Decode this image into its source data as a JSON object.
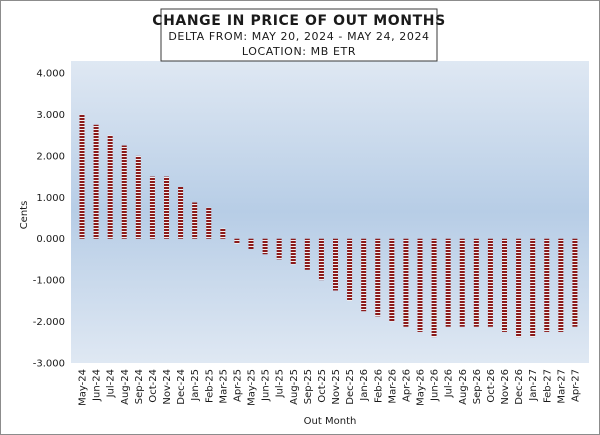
{
  "chart_data": {
    "type": "bar",
    "title": "CHANGE IN PRICE OF OUT MONTHS",
    "subtitle_lines": [
      "DELTA FROM: MAY 20, 2024 - MAY 24, 2024",
      "LOCATION: MB ETR"
    ],
    "xlabel": "Out Month",
    "ylabel": "Cents",
    "ylim": [
      -3,
      4
    ],
    "yticks": [
      "4.000",
      "3.000",
      "2.000",
      "1.000",
      "0.000",
      "-1.000",
      "-2.000",
      "-3.000"
    ],
    "categories": [
      "May-24",
      "Jun-24",
      "Jul-24",
      "Aug-24",
      "Sep-24",
      "Oct-24",
      "Nov-24",
      "Dec-24",
      "Jan-25",
      "Feb-25",
      "Mar-25",
      "Apr-25",
      "May-25",
      "Jun-25",
      "Jul-25",
      "Aug-25",
      "Sep-25",
      "Oct-25",
      "Nov-25",
      "Dec-25",
      "Jan-26",
      "Feb-26",
      "Mar-26",
      "Apr-26",
      "May-26",
      "Jun-26",
      "Jul-26",
      "Aug-26",
      "Sep-26",
      "Oct-26",
      "Nov-26",
      "Dec-26",
      "Jan-27",
      "Feb-27",
      "Mar-27",
      "Apr-27"
    ],
    "values": [
      3.0,
      2.75,
      2.5,
      2.25,
      2.0,
      1.5,
      1.5,
      1.25,
      0.875,
      0.75,
      0.25,
      -0.125,
      -0.25,
      -0.375,
      -0.5,
      -0.625,
      -0.75,
      -1.0,
      -1.25,
      -1.5,
      -1.75,
      -1.875,
      -2.0,
      -2.125,
      -2.25,
      -2.375,
      -2.125,
      -2.125,
      -2.125,
      -2.125,
      -2.25,
      -2.375,
      -2.375,
      -2.25,
      -2.25,
      -2.125
    ],
    "grid": false,
    "legend": "none",
    "colors": {
      "bar": "#8b1a1a",
      "bar_stripe": "#f2f2f2",
      "plot_top": "#dfe8f3",
      "plot_mid": "#b7cde6",
      "plot_bottom": "#dfe8f3"
    }
  }
}
